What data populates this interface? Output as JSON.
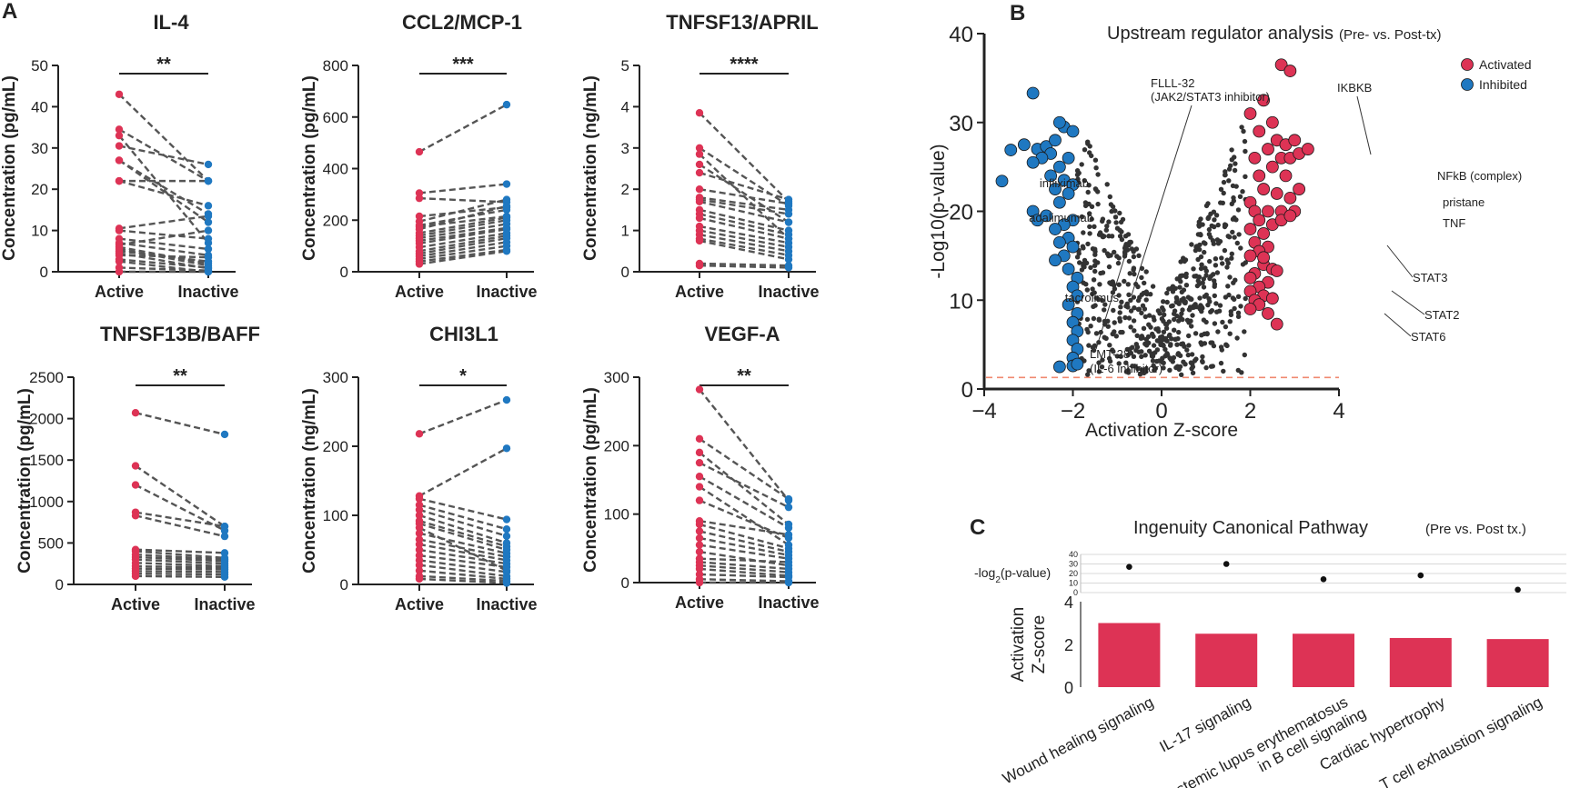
{
  "colors": {
    "activated": "#dd3355",
    "inhibited": "#1f78c1",
    "line": "#555555",
    "neutral": "#333333",
    "threshold": "#f08a70"
  },
  "panel_a": {
    "label": "A"
  },
  "panel_b": {
    "label": "B"
  },
  "panel_c": {
    "label": "C"
  },
  "chart_data": [
    {
      "id": "il4",
      "type": "paired-dot",
      "title": "IL-4",
      "ylabel": "Concentration (pg/mL)",
      "categories": [
        "Active",
        "Inactive"
      ],
      "ylim": [
        0,
        50
      ],
      "yticks": [
        0,
        10,
        20,
        30,
        40,
        50
      ],
      "significance": "**",
      "pairs": [
        [
          43,
          22
        ],
        [
          34.5,
          22
        ],
        [
          33,
          7
        ],
        [
          30.5,
          26
        ],
        [
          27,
          14
        ],
        [
          27,
          12
        ],
        [
          22,
          22
        ],
        [
          22,
          16
        ],
        [
          10.5,
          13.5
        ],
        [
          10,
          8
        ],
        [
          8,
          5.5
        ],
        [
          7,
          4
        ],
        [
          6.5,
          10
        ],
        [
          6,
          2
        ],
        [
          5.5,
          1.5
        ],
        [
          5,
          2.5
        ],
        [
          4.5,
          0.8
        ],
        [
          4,
          3.5
        ],
        [
          3,
          1
        ],
        [
          2.5,
          0
        ],
        [
          1,
          0.3
        ],
        [
          0,
          0
        ]
      ]
    },
    {
      "id": "ccl2",
      "type": "paired-dot",
      "title": "CCL2/MCP-1",
      "ylabel": "Concentration (pg/mL)",
      "categories": [
        "Active",
        "Inactive"
      ],
      "ylim": [
        0,
        800
      ],
      "yticks": [
        0,
        200,
        400,
        600,
        800
      ],
      "significance": "***",
      "pairs": [
        [
          465,
          648
        ],
        [
          305,
          340
        ],
        [
          285,
          270
        ],
        [
          215,
          250
        ],
        [
          195,
          280
        ],
        [
          180,
          240
        ],
        [
          175,
          215
        ],
        [
          165,
          255
        ],
        [
          150,
          210
        ],
        [
          140,
          200
        ],
        [
          130,
          185
        ],
        [
          120,
          170
        ],
        [
          110,
          165
        ],
        [
          95,
          150
        ],
        [
          80,
          140
        ],
        [
          70,
          130
        ],
        [
          60,
          115
        ],
        [
          50,
          100
        ],
        [
          40,
          85
        ],
        [
          30,
          80
        ]
      ]
    },
    {
      "id": "april",
      "type": "paired-dot",
      "title": "TNFSF13/APRIL",
      "ylabel": "Concentration (ng/mL)",
      "categories": [
        "Active",
        "Inactive"
      ],
      "ylim": [
        0,
        5
      ],
      "yticks": [
        0,
        1,
        2,
        3,
        4,
        5
      ],
      "significance": "****",
      "pairs": [
        [
          3.85,
          1.7
        ],
        [
          3.0,
          1.6
        ],
        [
          2.85,
          0.8
        ],
        [
          2.6,
          1.2
        ],
        [
          2.4,
          1.75
        ],
        [
          2.0,
          1.65
        ],
        [
          1.8,
          1.5
        ],
        [
          1.75,
          1.4
        ],
        [
          1.7,
          1.2
        ],
        [
          1.5,
          1.0
        ],
        [
          1.4,
          0.9
        ],
        [
          1.3,
          0.8
        ],
        [
          1.1,
          0.7
        ],
        [
          1.0,
          0.6
        ],
        [
          0.9,
          0.5
        ],
        [
          0.8,
          0.4
        ],
        [
          0.75,
          0.3
        ],
        [
          0.2,
          0.15
        ],
        [
          0.15,
          0.1
        ]
      ]
    },
    {
      "id": "baff",
      "type": "paired-dot",
      "title": "TNFSF13B/BAFF",
      "ylabel": "Concentration (pg/mL)",
      "categories": [
        "Active",
        "Inactive"
      ],
      "ylim": [
        0,
        2500
      ],
      "yticks": [
        0,
        500,
        1000,
        1500,
        2000,
        2500
      ],
      "significance": "**",
      "pairs": [
        [
          2070,
          1810
        ],
        [
          1430,
          700
        ],
        [
          1200,
          650
        ],
        [
          870,
          700
        ],
        [
          830,
          580
        ],
        [
          420,
          380
        ],
        [
          400,
          320
        ],
        [
          360,
          300
        ],
        [
          330,
          280
        ],
        [
          300,
          250
        ],
        [
          260,
          220
        ],
        [
          220,
          200
        ],
        [
          190,
          180
        ],
        [
          160,
          150
        ],
        [
          130,
          120
        ],
        [
          100,
          90
        ]
      ]
    },
    {
      "id": "chi3l1",
      "type": "paired-dot",
      "title": "CHI3L1",
      "ylabel": "Concentration (ng/mL)",
      "categories": [
        "Active",
        "Inactive"
      ],
      "ylim": [
        0,
        300
      ],
      "yticks": [
        0,
        100,
        200,
        300
      ],
      "significance": "*",
      "pairs": [
        [
          218,
          267
        ],
        [
          128,
          197
        ],
        [
          124,
          94
        ],
        [
          115,
          80
        ],
        [
          108,
          70
        ],
        [
          100,
          60
        ],
        [
          92,
          55
        ],
        [
          88,
          50
        ],
        [
          82,
          20
        ],
        [
          74,
          45
        ],
        [
          65,
          40
        ],
        [
          58,
          35
        ],
        [
          50,
          30
        ],
        [
          42,
          25
        ],
        [
          35,
          18
        ],
        [
          28,
          12
        ],
        [
          20,
          8
        ],
        [
          12,
          5
        ],
        [
          8,
          2
        ]
      ]
    },
    {
      "id": "vegfa",
      "type": "paired-dot",
      "title": "VEGF-A",
      "ylabel": "Concentration (pg/mL)",
      "categories": [
        "Active",
        "Inactive"
      ],
      "ylim": [
        0,
        300
      ],
      "yticks": [
        0,
        100,
        200,
        300
      ],
      "significance": "**",
      "pairs": [
        [
          282,
          120
        ],
        [
          210,
          122
        ],
        [
          190,
          85
        ],
        [
          175,
          110
        ],
        [
          155,
          80
        ],
        [
          140,
          55
        ],
        [
          120,
          65
        ],
        [
          90,
          70
        ],
        [
          85,
          50
        ],
        [
          75,
          45
        ],
        [
          65,
          40
        ],
        [
          55,
          35
        ],
        [
          45,
          25
        ],
        [
          35,
          30
        ],
        [
          30,
          20
        ],
        [
          25,
          15
        ],
        [
          20,
          10
        ],
        [
          12,
          8
        ],
        [
          5,
          2
        ],
        [
          0,
          0
        ]
      ]
    },
    {
      "id": "volcano",
      "type": "scatter",
      "title": "Upstream regulator analysis",
      "subtitle": "(Pre- vs. Post-tx)",
      "xlabel": "Activation Z-score",
      "ylabel": "-Log10(p-value)",
      "xlim": [
        -4,
        4
      ],
      "ylim": [
        0,
        40
      ],
      "xticks": [
        -4,
        -2,
        0,
        2,
        4
      ],
      "yticks": [
        0,
        10,
        20,
        30,
        40
      ],
      "threshold_y": 1.3,
      "legend": [
        {
          "label": "Activated",
          "key": "activated"
        },
        {
          "label": "Inhibited",
          "key": "inhibited"
        }
      ],
      "highlight_activated": [
        [
          2.7,
          36.5
        ],
        [
          2.9,
          35.8
        ],
        [
          2.0,
          31
        ],
        [
          2.3,
          32.5
        ],
        [
          2.5,
          30
        ],
        [
          2.2,
          29
        ],
        [
          2.6,
          28
        ],
        [
          2.8,
          27.5
        ],
        [
          3.0,
          28
        ],
        [
          2.4,
          27
        ],
        [
          2.1,
          26
        ],
        [
          2.7,
          26
        ],
        [
          2.9,
          26
        ],
        [
          3.1,
          26.5
        ],
        [
          3.3,
          27
        ],
        [
          2.5,
          25
        ],
        [
          2.2,
          24
        ],
        [
          2.8,
          24
        ],
        [
          3.1,
          22.5
        ],
        [
          2.9,
          21.5
        ],
        [
          2.6,
          22
        ],
        [
          2.3,
          22.5
        ],
        [
          2.0,
          21
        ],
        [
          2.1,
          20
        ],
        [
          2.4,
          20
        ],
        [
          2.7,
          20
        ],
        [
          3.0,
          20
        ],
        [
          2.2,
          19
        ],
        [
          2.5,
          18.5
        ],
        [
          2.0,
          18
        ],
        [
          2.3,
          17.5
        ],
        [
          2.1,
          16.5
        ],
        [
          2.4,
          16
        ],
        [
          2.2,
          15.5
        ],
        [
          2.0,
          15
        ],
        [
          2.3,
          14
        ],
        [
          2.5,
          13.5
        ],
        [
          2.1,
          13
        ],
        [
          2.0,
          12.5
        ],
        [
          2.4,
          12
        ],
        [
          2.2,
          11.5
        ],
        [
          2.6,
          13.3
        ],
        [
          2.0,
          11
        ],
        [
          2.3,
          10.5
        ],
        [
          2.1,
          10
        ],
        [
          2.5,
          10.2
        ],
        [
          2.2,
          9.5
        ],
        [
          2.0,
          9
        ],
        [
          2.4,
          8.5
        ],
        [
          2.6,
          7.3
        ],
        [
          2.3,
          14.8
        ],
        [
          2.7,
          19
        ],
        [
          2.9,
          19.5
        ]
      ],
      "highlight_inhibited": [
        [
          -2.9,
          33.3
        ],
        [
          -3.4,
          26.9
        ],
        [
          -3.1,
          27.5
        ],
        [
          -2.8,
          27
        ],
        [
          -2.6,
          27.3
        ],
        [
          -2.4,
          28
        ],
        [
          -2.2,
          29.5
        ],
        [
          -2.3,
          30
        ],
        [
          -2.0,
          29
        ],
        [
          -2.5,
          26.5
        ],
        [
          -2.7,
          26
        ],
        [
          -2.9,
          25.5
        ],
        [
          -3.6,
          23.4
        ],
        [
          -2.1,
          26
        ],
        [
          -2.3,
          25
        ],
        [
          -2.5,
          24
        ],
        [
          -2.2,
          23.5
        ],
        [
          -2.0,
          23
        ],
        [
          -2.4,
          22.5
        ],
        [
          -2.1,
          22
        ],
        [
          -2.3,
          21
        ],
        [
          -2.9,
          20
        ],
        [
          -2.8,
          19
        ],
        [
          -2.6,
          19.5
        ],
        [
          -2.0,
          19
        ],
        [
          -2.2,
          18.5
        ],
        [
          -2.4,
          18
        ],
        [
          -2.1,
          17
        ],
        [
          -2.3,
          16.5
        ],
        [
          -2.0,
          16
        ],
        [
          -2.2,
          15
        ],
        [
          -2.4,
          14.5
        ],
        [
          -2.1,
          13.5
        ],
        [
          -1.9,
          12.5
        ],
        [
          -2.0,
          11.5
        ],
        [
          -1.9,
          10.5
        ],
        [
          -2.1,
          9.5
        ],
        [
          -1.9,
          8.5
        ],
        [
          -2.0,
          7.5
        ],
        [
          -1.9,
          6.5
        ],
        [
          -2.0,
          5.5
        ],
        [
          -1.9,
          4.5
        ],
        [
          -2.0,
          3.5
        ],
        [
          -2.3,
          2.5
        ],
        [
          -2.0,
          2.6
        ],
        [
          -1.9,
          2.8
        ]
      ],
      "annotations": [
        "FLLL-32",
        "(JAK2/STAT3 inhibitor)",
        "IKBKB",
        "NFkB (complex)",
        "pristane",
        "TNF",
        "infliximab",
        "adalimumab",
        "tacrolimus",
        "STAT3",
        "STAT2",
        "STAT6",
        "LMT-28",
        "(IL-6 inhibitor)"
      ]
    },
    {
      "id": "pathway",
      "type": "bar",
      "title": "Ingenuity Canonical Pathway",
      "subtitle": "(Pre vs. Post tx.)",
      "categories": [
        "Wound healing signaling",
        "IL-17 signaling",
        "Systemic lupus erythematosus in B cell signaling",
        "Cardiac hypertrophy",
        "T cell exhaustion signaling"
      ],
      "category_lines": [
        [
          "Wound healing signaling"
        ],
        [
          "IL-17 signaling"
        ],
        [
          "Systemic lupus erythematosus",
          "in B cell signaling"
        ],
        [
          "Cardiac hypertrophy"
        ],
        [
          "T cell exhaustion signaling"
        ]
      ],
      "values": [
        3.0,
        2.5,
        2.5,
        2.3,
        2.25
      ],
      "ylabel": "Activation Z-score",
      "ylabel_lines": [
        "Activation",
        "Z-score"
      ],
      "ylim": [
        0,
        4
      ],
      "yticks": [
        0,
        2,
        4
      ],
      "dot_series": {
        "label": "-log2(p-value)",
        "label_main": "-log",
        "label_sub": "2",
        "label_rest": "(p-value)",
        "values": [
          27,
          30,
          14,
          18,
          3
        ],
        "ylim": [
          0,
          40
        ],
        "yticks": [
          0,
          10,
          20,
          30,
          40
        ]
      }
    }
  ]
}
